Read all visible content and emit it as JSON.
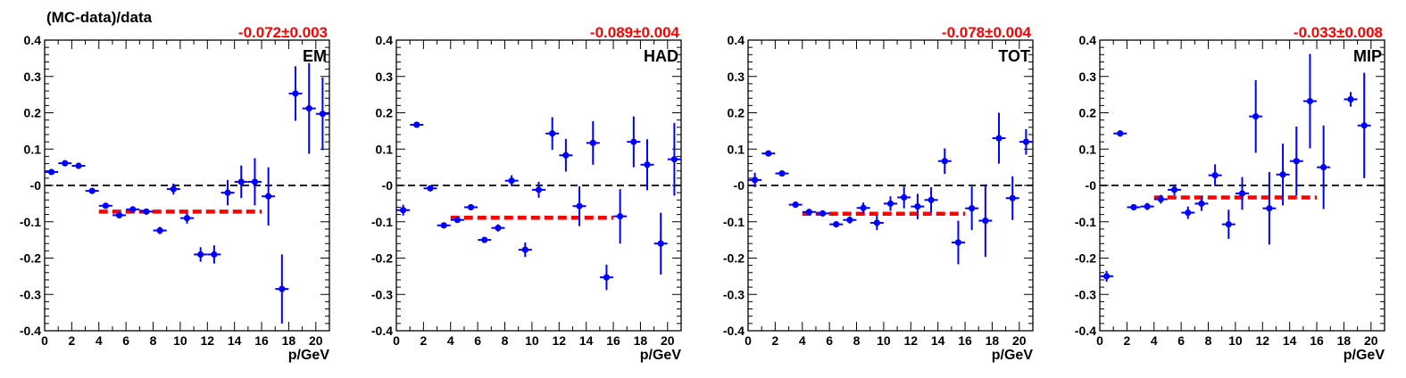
{
  "figure": {
    "ylabel": "(MC-data)/data",
    "xlabel": "p/GeV"
  },
  "colors": {
    "points": "#0000ff",
    "fit": "#ff0000",
    "reference": "#000000"
  },
  "chart_data": [
    {
      "type": "scatter",
      "label": "EM",
      "fit_text": "-0.072±0.003",
      "fit": {
        "value": -0.072,
        "x_range": [
          4,
          16
        ]
      },
      "reference_y": 0,
      "xlim": [
        0,
        21
      ],
      "ylim": [
        -0.4,
        0.4
      ],
      "x_ticks": [
        "0",
        "2",
        "4",
        "6",
        "8",
        "10",
        "12",
        "14",
        "16",
        "18",
        "20"
      ],
      "y_ticks": [
        "-0.4",
        "-0.3",
        "-0.2",
        "-0.1",
        "-0",
        "0.1",
        "0.2",
        "0.3",
        "0.4"
      ],
      "points": [
        {
          "x": 0.5,
          "y": 0.037,
          "err": 0.006
        },
        {
          "x": 1.5,
          "y": 0.061,
          "err": 0.004
        },
        {
          "x": 2.5,
          "y": 0.054,
          "err": 0.004
        },
        {
          "x": 3.5,
          "y": -0.015,
          "err": 0.004
        },
        {
          "x": 4.5,
          "y": -0.056,
          "err": 0.004
        },
        {
          "x": 5.5,
          "y": -0.082,
          "err": 0.005
        },
        {
          "x": 6.5,
          "y": -0.066,
          "err": 0.005
        },
        {
          "x": 7.5,
          "y": -0.072,
          "err": 0.006
        },
        {
          "x": 8.5,
          "y": -0.124,
          "err": 0.01
        },
        {
          "x": 9.5,
          "y": -0.01,
          "err": 0.015
        },
        {
          "x": 10.5,
          "y": -0.09,
          "err": 0.015
        },
        {
          "x": 11.5,
          "y": -0.19,
          "err": 0.02
        },
        {
          "x": 12.5,
          "y": -0.19,
          "err": 0.025
        },
        {
          "x": 13.5,
          "y": -0.02,
          "err": 0.035
        },
        {
          "x": 14.5,
          "y": 0.01,
          "err": 0.045
        },
        {
          "x": 15.5,
          "y": 0.01,
          "err": 0.065
        },
        {
          "x": 16.5,
          "y": -0.03,
          "err": 0.08
        },
        {
          "x": 17.5,
          "y": -0.285,
          "err": 0.095
        },
        {
          "x": 18.5,
          "y": 0.253,
          "err": 0.075
        },
        {
          "x": 19.5,
          "y": 0.212,
          "err": 0.125
        },
        {
          "x": 20.5,
          "y": 0.197,
          "err": 0.1
        }
      ]
    },
    {
      "type": "scatter",
      "label": "HAD",
      "fit_text": "-0.089±0.004",
      "fit": {
        "value": -0.089,
        "x_range": [
          4,
          16
        ]
      },
      "reference_y": 0,
      "xlim": [
        0,
        21
      ],
      "ylim": [
        -0.4,
        0.4
      ],
      "x_ticks": [
        "0",
        "2",
        "4",
        "6",
        "8",
        "10",
        "12",
        "14",
        "16",
        "18",
        "20"
      ],
      "y_ticks": [
        "-0.4",
        "-0.3",
        "-0.2",
        "-0.1",
        "-0",
        "0.1",
        "0.2",
        "0.3",
        "0.4"
      ],
      "points": [
        {
          "x": 0.5,
          "y": -0.068,
          "err": 0.015
        },
        {
          "x": 1.5,
          "y": 0.167,
          "err": 0.006
        },
        {
          "x": 2.5,
          "y": -0.008,
          "err": 0.005
        },
        {
          "x": 3.5,
          "y": -0.11,
          "err": 0.005
        },
        {
          "x": 4.5,
          "y": -0.095,
          "err": 0.005
        },
        {
          "x": 5.5,
          "y": -0.06,
          "err": 0.005
        },
        {
          "x": 6.5,
          "y": -0.15,
          "err": 0.006
        },
        {
          "x": 7.5,
          "y": -0.117,
          "err": 0.01
        },
        {
          "x": 8.5,
          "y": 0.013,
          "err": 0.015
        },
        {
          "x": 9.5,
          "y": -0.177,
          "err": 0.02
        },
        {
          "x": 10.5,
          "y": -0.012,
          "err": 0.022
        },
        {
          "x": 11.5,
          "y": 0.143,
          "err": 0.045
        },
        {
          "x": 12.5,
          "y": 0.083,
          "err": 0.045
        },
        {
          "x": 13.5,
          "y": -0.057,
          "err": 0.055
        },
        {
          "x": 14.5,
          "y": 0.117,
          "err": 0.06
        },
        {
          "x": 15.5,
          "y": -0.253,
          "err": 0.035
        },
        {
          "x": 16.5,
          "y": -0.085,
          "err": 0.075
        },
        {
          "x": 17.5,
          "y": 0.12,
          "err": 0.07
        },
        {
          "x": 18.5,
          "y": 0.057,
          "err": 0.07
        },
        {
          "x": 19.5,
          "y": -0.16,
          "err": 0.085
        },
        {
          "x": 20.5,
          "y": 0.072,
          "err": 0.1
        }
      ]
    },
    {
      "type": "scatter",
      "label": "TOT",
      "fit_text": "-0.078±0.004",
      "fit": {
        "value": -0.078,
        "x_range": [
          4,
          16
        ]
      },
      "reference_y": 0,
      "xlim": [
        0,
        21
      ],
      "ylim": [
        -0.4,
        0.4
      ],
      "x_ticks": [
        "0",
        "2",
        "4",
        "6",
        "8",
        "10",
        "12",
        "14",
        "16",
        "18",
        "20"
      ],
      "y_ticks": [
        "-0.4",
        "-0.3",
        "-0.2",
        "-0.1",
        "-0",
        "0.1",
        "0.2",
        "0.3",
        "0.4"
      ],
      "points": [
        {
          "x": 0.5,
          "y": 0.015,
          "err": 0.02
        },
        {
          "x": 1.5,
          "y": 0.088,
          "err": 0.008
        },
        {
          "x": 2.5,
          "y": 0.033,
          "err": 0.005
        },
        {
          "x": 3.5,
          "y": -0.053,
          "err": 0.005
        },
        {
          "x": 4.5,
          "y": -0.073,
          "err": 0.005
        },
        {
          "x": 5.5,
          "y": -0.077,
          "err": 0.006
        },
        {
          "x": 6.5,
          "y": -0.107,
          "err": 0.007
        },
        {
          "x": 7.5,
          "y": -0.095,
          "err": 0.01
        },
        {
          "x": 8.5,
          "y": -0.062,
          "err": 0.015
        },
        {
          "x": 9.5,
          "y": -0.103,
          "err": 0.02
        },
        {
          "x": 10.5,
          "y": -0.05,
          "err": 0.02
        },
        {
          "x": 11.5,
          "y": -0.033,
          "err": 0.03
        },
        {
          "x": 12.5,
          "y": -0.058,
          "err": 0.035
        },
        {
          "x": 13.5,
          "y": -0.04,
          "err": 0.035
        },
        {
          "x": 14.5,
          "y": 0.067,
          "err": 0.035
        },
        {
          "x": 15.5,
          "y": -0.157,
          "err": 0.06
        },
        {
          "x": 16.5,
          "y": -0.063,
          "err": 0.06
        },
        {
          "x": 17.5,
          "y": -0.097,
          "err": 0.1
        },
        {
          "x": 18.5,
          "y": 0.13,
          "err": 0.07
        },
        {
          "x": 19.5,
          "y": -0.035,
          "err": 0.06
        },
        {
          "x": 20.5,
          "y": 0.12,
          "err": 0.035
        }
      ]
    },
    {
      "type": "scatter",
      "label": "MIP",
      "fit_text": "-0.033±0.008",
      "fit": {
        "value": -0.033,
        "x_range": [
          4,
          16
        ]
      },
      "reference_y": 0,
      "xlim": [
        0,
        21
      ],
      "ylim": [
        -0.4,
        0.4
      ],
      "x_ticks": [
        "0",
        "2",
        "4",
        "6",
        "8",
        "10",
        "12",
        "14",
        "16",
        "18",
        "20"
      ],
      "y_ticks": [
        "-0.4",
        "-0.3",
        "-0.2",
        "-0.1",
        "-0",
        "0.1",
        "0.2",
        "0.3",
        "0.4"
      ],
      "points": [
        {
          "x": 0.5,
          "y": -0.25,
          "err": 0.015
        },
        {
          "x": 1.5,
          "y": 0.143,
          "err": 0.008
        },
        {
          "x": 2.5,
          "y": -0.06,
          "err": 0.008
        },
        {
          "x": 3.5,
          "y": -0.058,
          "err": 0.01
        },
        {
          "x": 4.5,
          "y": -0.038,
          "err": 0.012
        },
        {
          "x": 5.5,
          "y": -0.012,
          "err": 0.015
        },
        {
          "x": 6.5,
          "y": -0.075,
          "err": 0.017
        },
        {
          "x": 7.5,
          "y": -0.05,
          "err": 0.02
        },
        {
          "x": 8.5,
          "y": 0.028,
          "err": 0.03
        },
        {
          "x": 9.5,
          "y": -0.107,
          "err": 0.04
        },
        {
          "x": 10.5,
          "y": -0.022,
          "err": 0.045
        },
        {
          "x": 11.5,
          "y": 0.19,
          "err": 0.1
        },
        {
          "x": 12.5,
          "y": -0.063,
          "err": 0.1
        },
        {
          "x": 13.5,
          "y": 0.03,
          "err": 0.085
        },
        {
          "x": 14.5,
          "y": 0.067,
          "err": 0.095
        },
        {
          "x": 15.5,
          "y": 0.232,
          "err": 0.13
        },
        {
          "x": 16.5,
          "y": 0.05,
          "err": 0.115
        },
        {
          "x": 18.5,
          "y": 0.237,
          "err": 0.02
        },
        {
          "x": 19.5,
          "y": 0.165,
          "err": 0.145
        }
      ]
    }
  ]
}
